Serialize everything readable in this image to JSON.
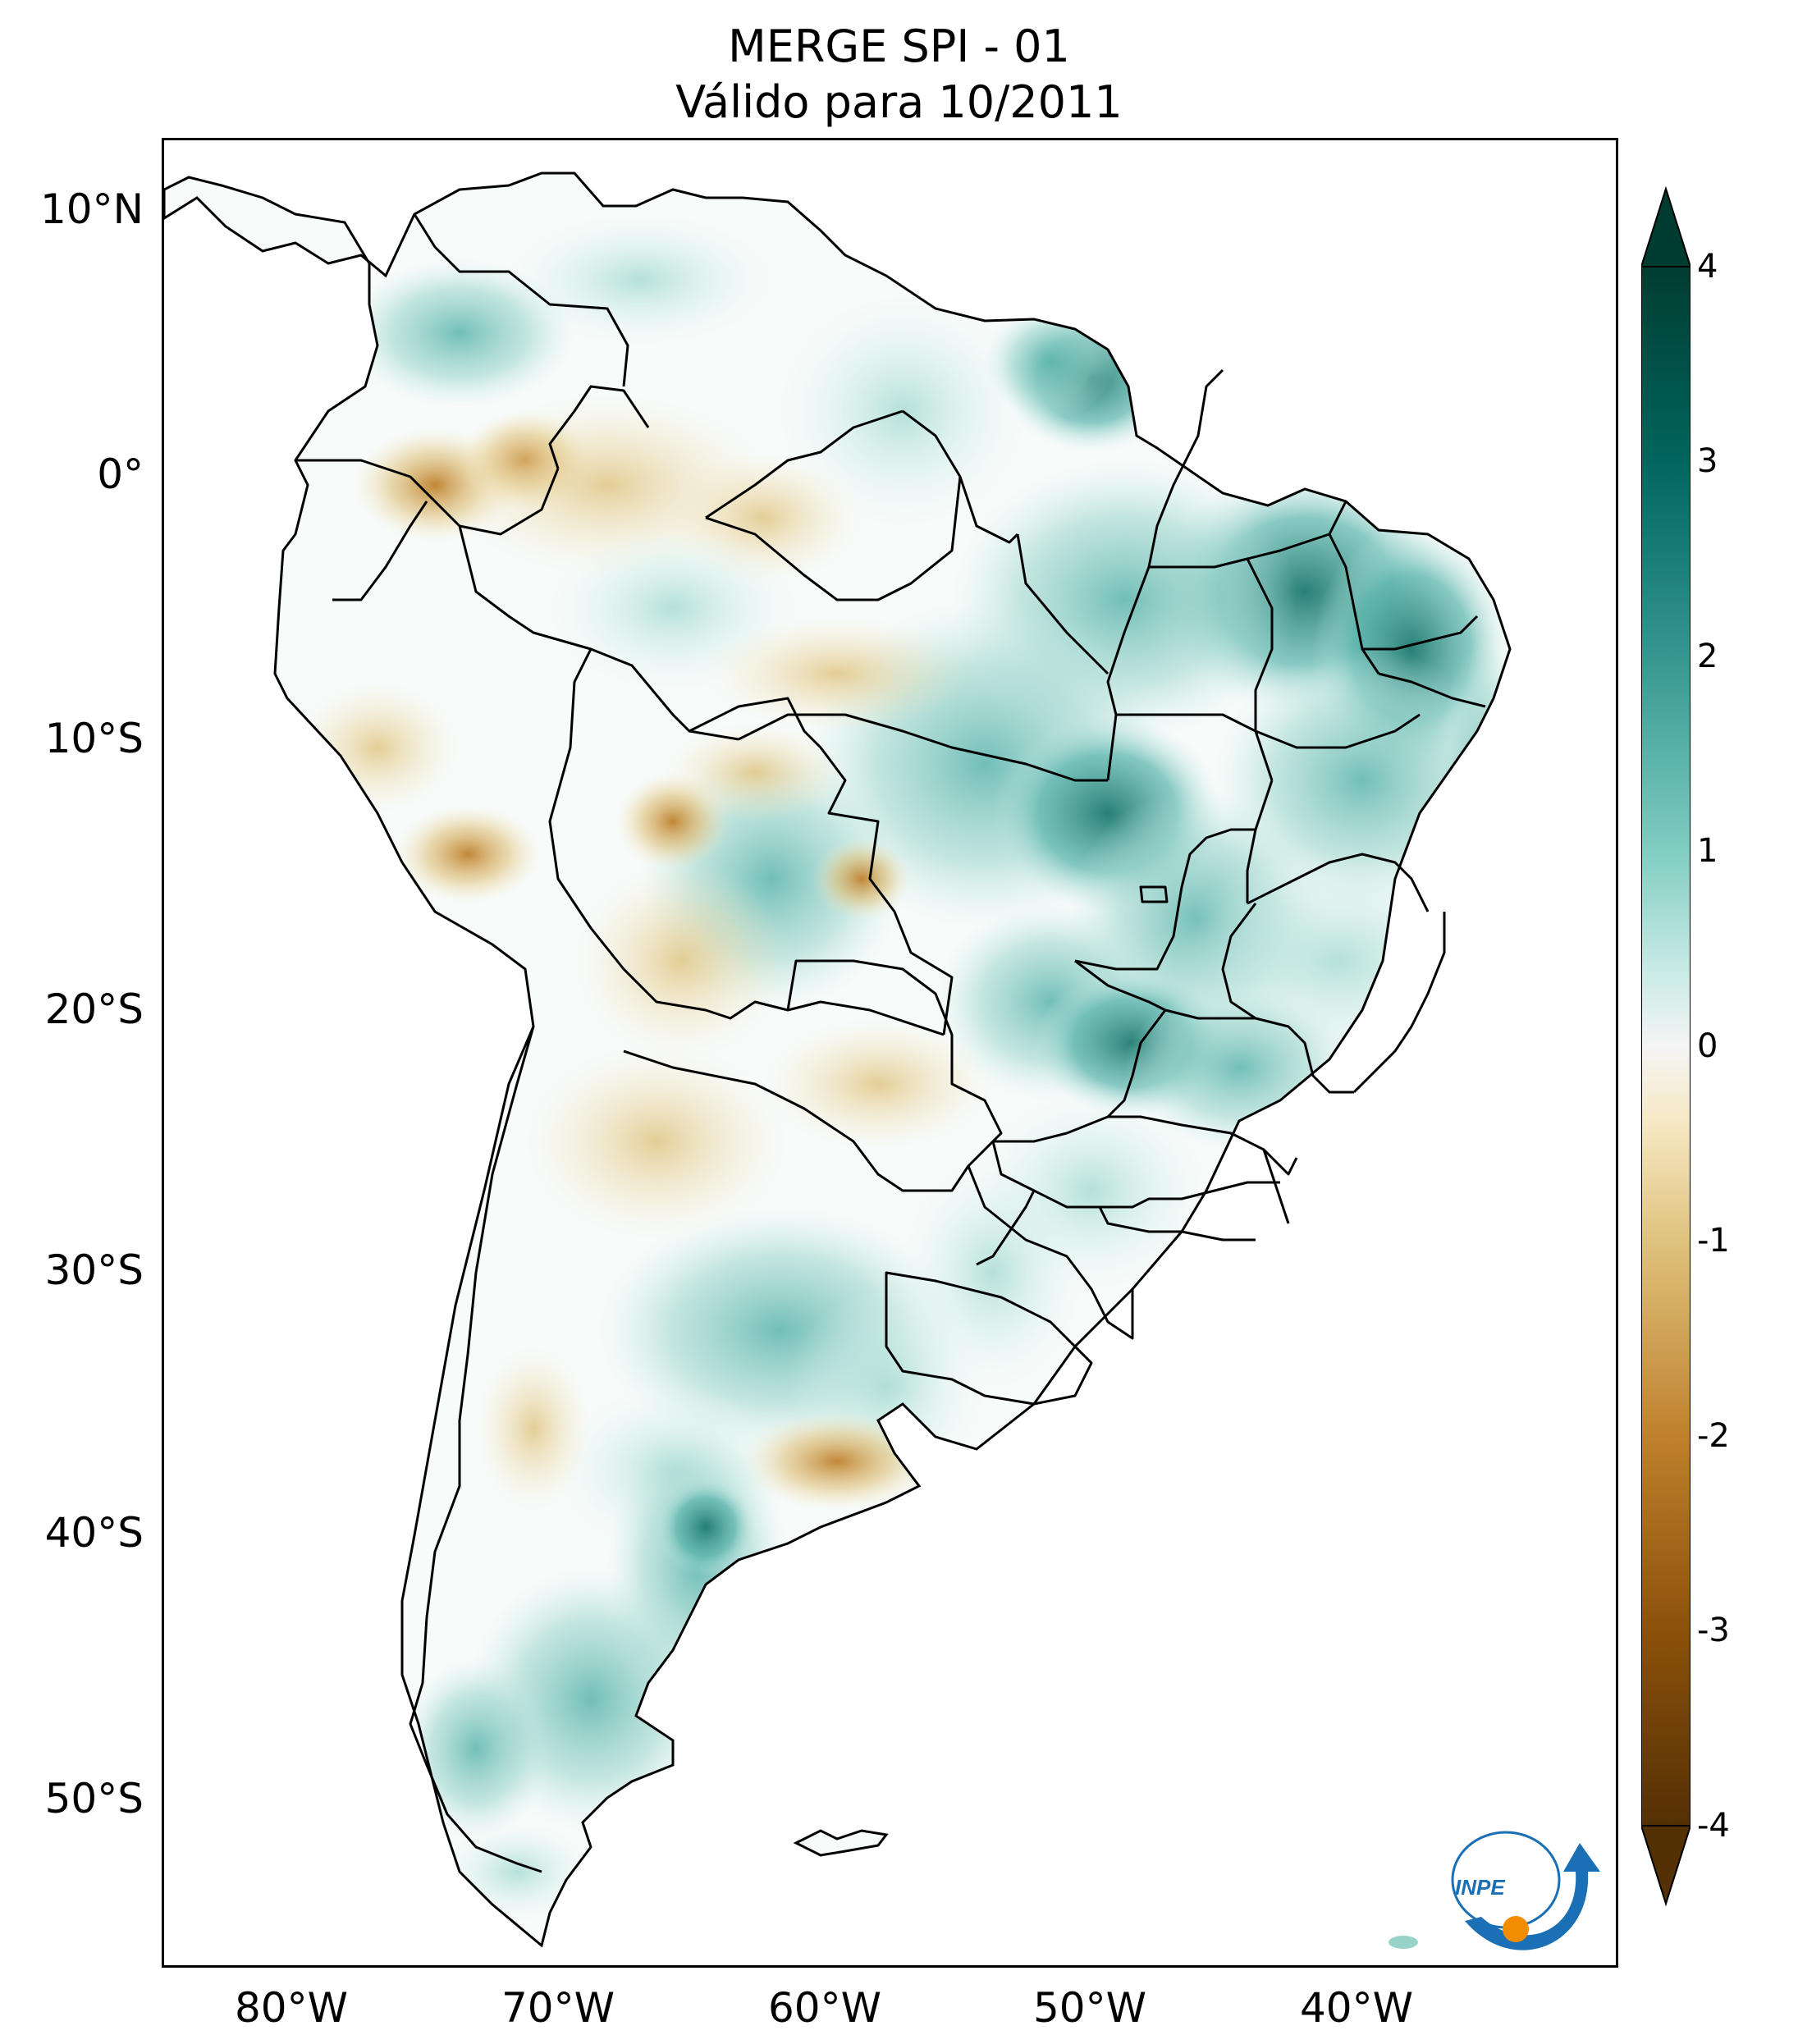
{
  "title": {
    "line1": "MERGE   SPI - 01",
    "line2": "Válido para 10/2011"
  },
  "map": {
    "region": "South America",
    "variable": "SPI - 01",
    "lon_range": [
      -85,
      -30
    ],
    "lat_range": [
      -56,
      13
    ],
    "lat_ticks": [
      "10°N",
      "0°",
      "10°S",
      "20°S",
      "30°S",
      "40°S",
      "50°S"
    ],
    "lon_ticks": [
      "80°W",
      "70°W",
      "60°W",
      "50°W",
      "40°W"
    ]
  },
  "colorbar": {
    "colormap": "BrBG",
    "range": [
      -4,
      4
    ],
    "extend": "both",
    "ticks": [
      "4",
      "3",
      "2",
      "1",
      "0",
      "-1",
      "-2",
      "-3",
      "-4"
    ],
    "colors": {
      "max": "#003c30",
      "high": "#35978f",
      "mid_high": "#c7eae5",
      "neutral": "#f5f5f5",
      "mid_low": "#f6e8c3",
      "low": "#bf812d",
      "min": "#543005"
    }
  },
  "logo": {
    "text": "INPE",
    "colors": {
      "blue": "#1a6fb5",
      "orange": "#f28c00"
    }
  }
}
